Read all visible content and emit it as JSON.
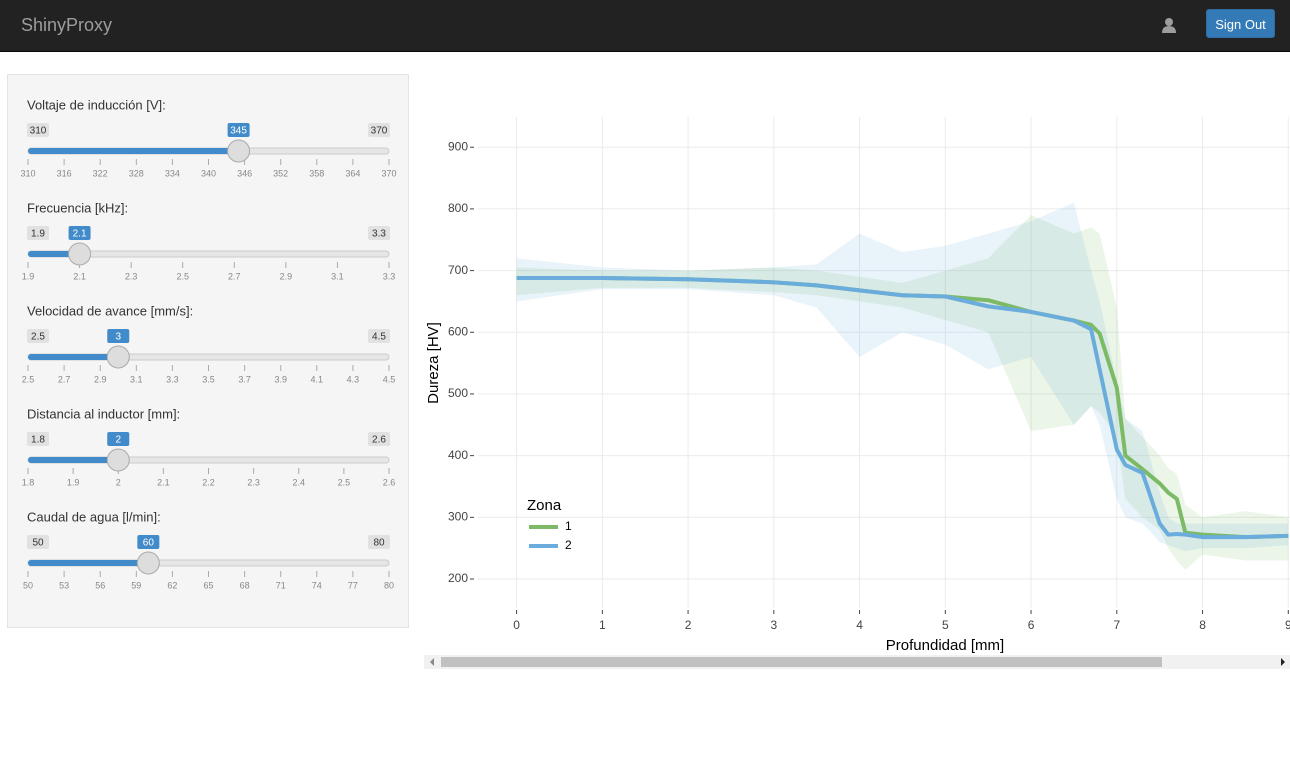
{
  "navbar": {
    "brand": "ShinyProxy",
    "button": "Sign Out"
  },
  "sliders": [
    {
      "label": "Voltaje de inducción [V]:",
      "min": 310,
      "max": 370,
      "value": 345,
      "ticks": [
        310,
        316,
        322,
        328,
        334,
        340,
        346,
        352,
        358,
        364,
        370
      ]
    },
    {
      "label": "Frecuencia [kHz]:",
      "min": 1.9,
      "max": 3.3,
      "value": 2.1,
      "ticks": [
        1.9,
        2.1,
        2.3,
        2.5,
        2.7,
        2.9,
        3.1,
        3.3
      ]
    },
    {
      "label": "Velocidad de avance [mm/s]:",
      "min": 2.5,
      "max": 4.5,
      "value": 3,
      "ticks": [
        2.5,
        2.7,
        2.9,
        3.1,
        3.3,
        3.5,
        3.7,
        3.9,
        4.1,
        4.3,
        4.5
      ]
    },
    {
      "label": "Distancia al inductor [mm]:",
      "min": 1.8,
      "max": 2.6,
      "value": 2,
      "ticks": [
        1.8,
        1.9,
        2,
        2.1,
        2.2,
        2.3,
        2.4,
        2.5,
        2.6
      ]
    },
    {
      "label": "Caudal de agua [l/min]:",
      "min": 50,
      "max": 80,
      "value": 60,
      "ticks": [
        50,
        53,
        56,
        59,
        62,
        65,
        68,
        71,
        74,
        77,
        80
      ]
    }
  ],
  "chart_data": {
    "type": "line",
    "x_label": "Profundidad [mm]",
    "y_label": "Dureza [HV]",
    "legend_title": "Zona",
    "x": [
      0,
      1,
      2,
      3,
      3.5,
      4,
      4.5,
      5,
      5.5,
      6,
      6.5,
      6.7,
      6.8,
      7,
      7.1,
      7.3,
      7.5,
      7.6,
      7.7,
      7.8,
      8,
      8.5,
      9
    ],
    "series": [
      {
        "name": "1",
        "color": "#7cba65",
        "values": [
          688,
          688,
          686,
          681,
          676,
          668,
          660,
          658,
          652,
          633,
          619,
          612,
          598,
          510,
          400,
          378,
          355,
          340,
          330,
          275,
          272,
          268,
          270
        ],
        "lower": [
          660,
          672,
          672,
          665,
          660,
          650,
          640,
          620,
          600,
          440,
          450,
          480,
          470,
          430,
          330,
          300,
          280,
          250,
          230,
          215,
          240,
          230,
          230
        ],
        "upper": [
          705,
          700,
          700,
          705,
          700,
          690,
          680,
          700,
          720,
          790,
          760,
          770,
          760,
          640,
          460,
          430,
          400,
          380,
          370,
          320,
          300,
          310,
          300
        ]
      },
      {
        "name": "2",
        "color": "#6aaddc",
        "values": [
          688,
          688,
          686,
          681,
          676,
          668,
          660,
          658,
          642,
          633,
          619,
          605,
          540,
          410,
          385,
          372,
          290,
          272,
          273,
          272,
          268,
          268,
          270
        ],
        "lower": [
          650,
          670,
          670,
          660,
          640,
          560,
          600,
          580,
          540,
          560,
          450,
          480,
          450,
          330,
          300,
          290,
          260,
          255,
          250,
          245,
          250,
          250,
          255
        ],
        "upper": [
          720,
          705,
          700,
          705,
          710,
          760,
          730,
          740,
          760,
          780,
          810,
          700,
          650,
          520,
          460,
          440,
          340,
          300,
          290,
          290,
          290,
          290,
          290
        ]
      }
    ],
    "xlim": [
      -0.45,
      9.02
    ],
    "ylim": [
      153,
      949
    ],
    "xticks": [
      0,
      1,
      2,
      3,
      4,
      5,
      6,
      7,
      8,
      9
    ],
    "yticks": [
      200,
      300,
      400,
      500,
      600,
      700,
      800,
      900
    ],
    "grid": true
  }
}
